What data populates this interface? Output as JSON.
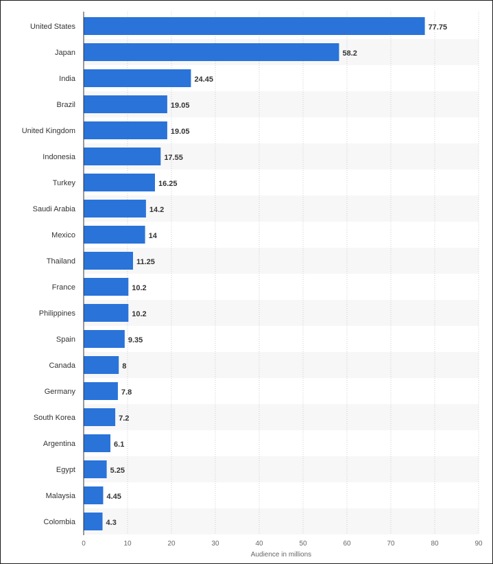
{
  "chart_data": {
    "type": "bar",
    "orientation": "horizontal",
    "categories": [
      "United States",
      "Japan",
      "India",
      "Brazil",
      "United Kingdom",
      "Indonesia",
      "Turkey",
      "Saudi Arabia",
      "Mexico",
      "Thailand",
      "France",
      "Philippines",
      "Spain",
      "Canada",
      "Germany",
      "South Korea",
      "Argentina",
      "Egypt",
      "Malaysia",
      "Colombia"
    ],
    "values": [
      77.75,
      58.2,
      24.45,
      19.05,
      19.05,
      17.55,
      16.25,
      14.2,
      14,
      11.25,
      10.2,
      10.2,
      9.35,
      8,
      7.8,
      7.2,
      6.1,
      5.25,
      4.45,
      4.3
    ],
    "value_labels": [
      "77.75",
      "58.2",
      "24.45",
      "19.05",
      "19.05",
      "17.55",
      "16.25",
      "14.2",
      "14",
      "11.25",
      "10.2",
      "10.2",
      "9.35",
      "8",
      "7.8",
      "7.2",
      "6.1",
      "5.25",
      "4.45",
      "4.3"
    ],
    "xlabel": "Audience in millions",
    "xlim": [
      0,
      90
    ],
    "x_ticks": [
      0,
      10,
      20,
      30,
      40,
      50,
      60,
      70,
      80,
      90
    ],
    "grid": true,
    "bar_color": "#2a73d9",
    "stripe_color": "#f7f7f7",
    "grid_color": "#cccccc"
  }
}
